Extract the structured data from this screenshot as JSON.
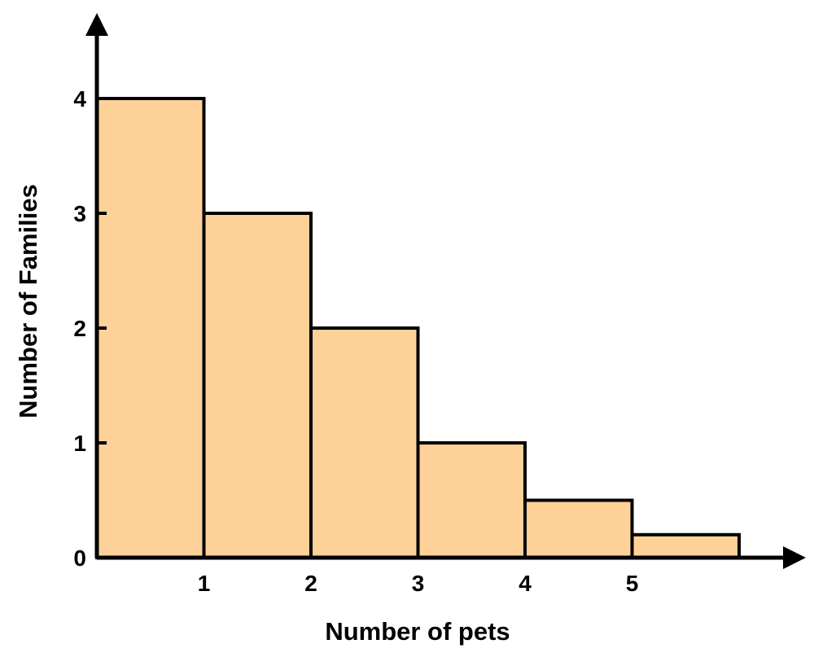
{
  "chart_data": {
    "type": "bar",
    "title": "",
    "xlabel": "Number of pets",
    "ylabel": "Number of Families",
    "x_bin_edges": [
      0,
      1,
      2,
      3,
      4,
      5,
      6
    ],
    "values": [
      4,
      3,
      2,
      1,
      0.5,
      0.2
    ],
    "x_ticks": [
      "1",
      "2",
      "3",
      "4",
      "5"
    ],
    "y_ticks": [
      "0",
      "1",
      "2",
      "3",
      "4"
    ],
    "ylim": [
      0,
      4.5
    ],
    "grid": false,
    "legend": "none",
    "bar_color": "#fed198",
    "edge_color": "#000000"
  }
}
